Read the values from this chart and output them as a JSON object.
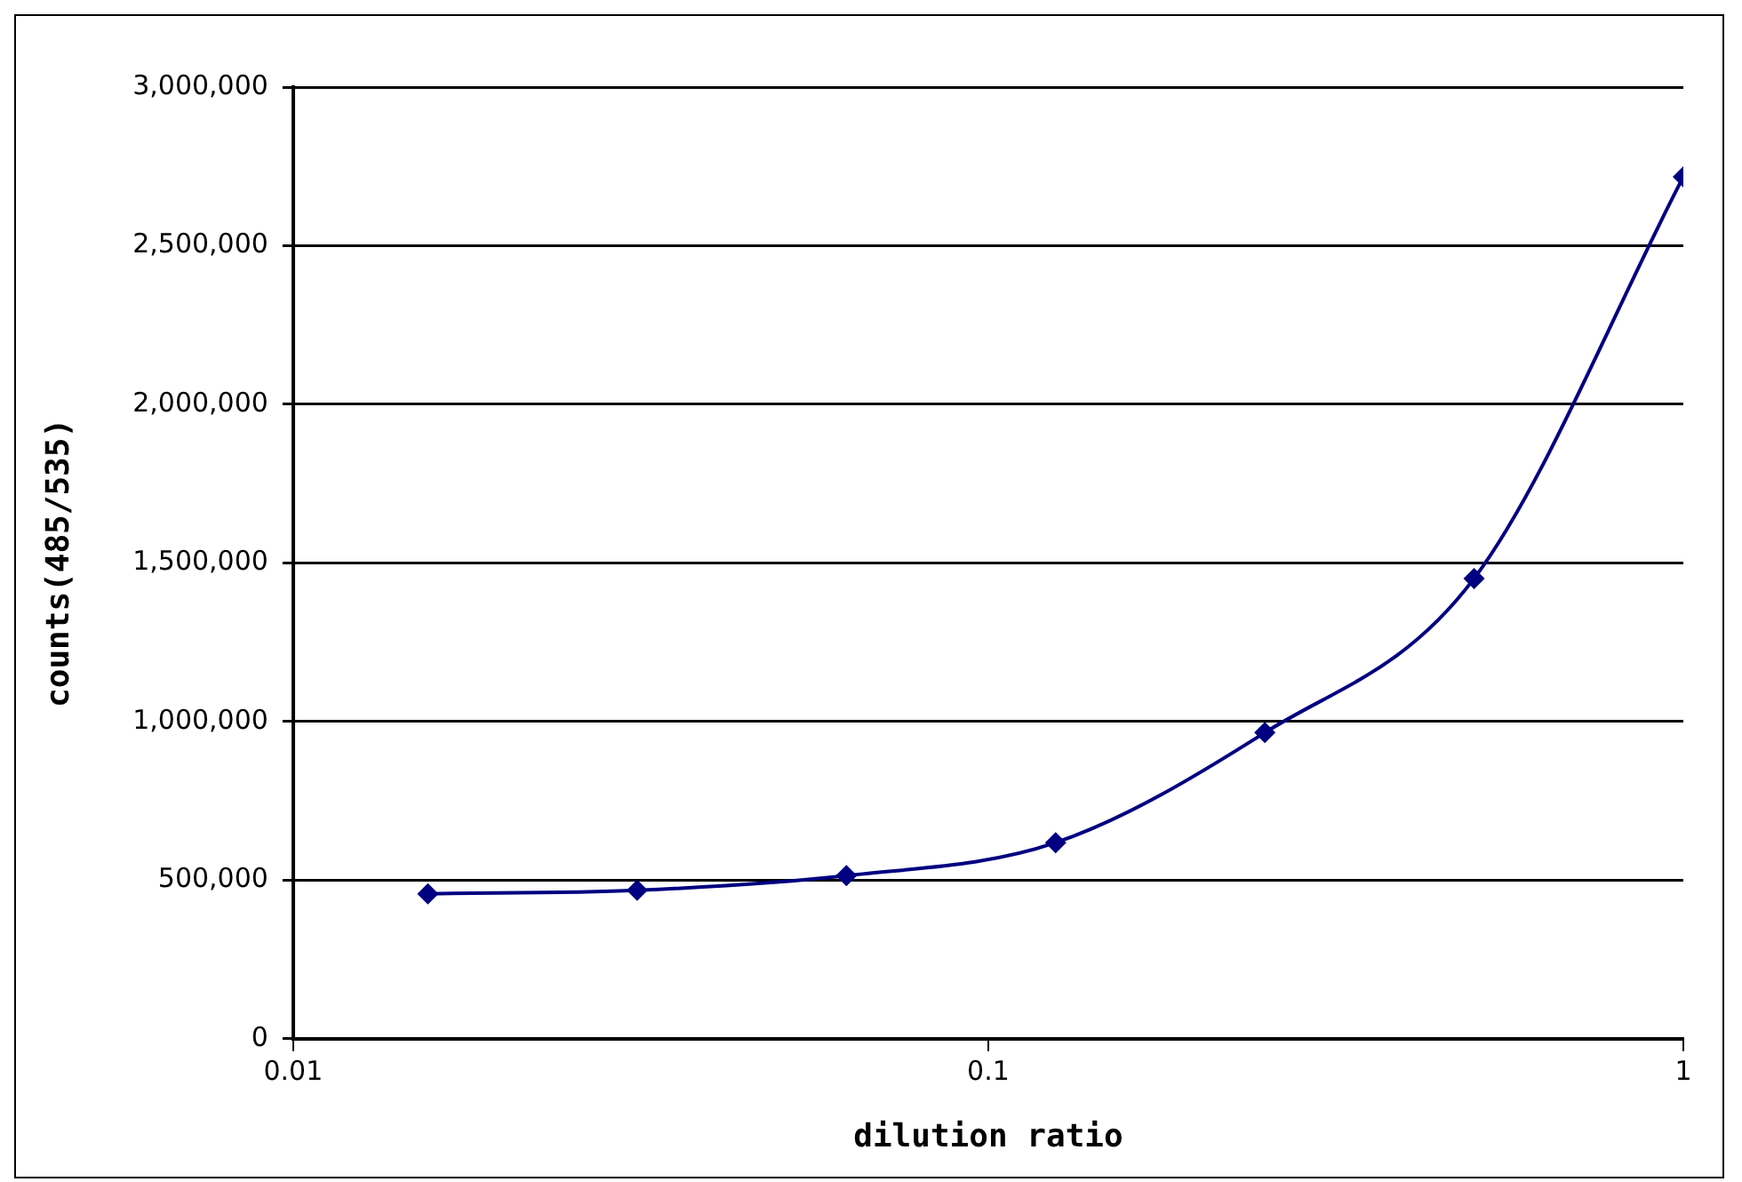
{
  "chart_data": {
    "type": "line",
    "xlabel": "dilution ratio",
    "ylabel": "counts(485/535)",
    "x": [
      0.015625,
      0.03125,
      0.0625,
      0.125,
      0.25,
      0.5,
      1
    ],
    "series": [
      {
        "color": "#000080",
        "values": [
          457000,
          468000,
          514000,
          618000,
          965000,
          1451000,
          2717000
        ]
      }
    ],
    "log": "x",
    "xlim": [
      0.01,
      1
    ],
    "xticks": [
      0.01,
      0.1,
      1
    ],
    "ylim": [
      0,
      3000000
    ],
    "yticks": [
      0,
      {
        "value": 500000,
        "label": "500,000"
      },
      {
        "value": 1000000,
        "label": "1,000,000"
      },
      {
        "value": 1500000,
        "label": "1,500,000"
      },
      {
        "value": 2000000,
        "label": "2,000,000"
      },
      {
        "value": 2500000,
        "label": "2,500,000"
      },
      {
        "value": 3000000,
        "label": "3,000,000"
      }
    ],
    "grid": "y",
    "marker": "diamond",
    "line_style": "solid",
    "legend": false
  }
}
